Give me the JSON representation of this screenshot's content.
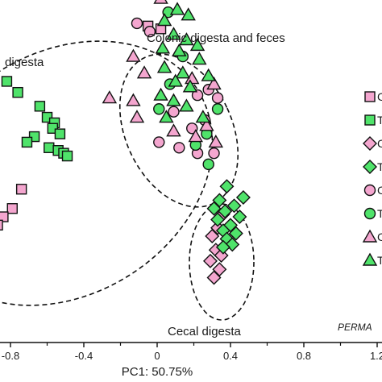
{
  "chart_data": {
    "type": "scatter",
    "xlabel": "PC1: 50.75%",
    "xlim": [
      -0.95,
      1.2
    ],
    "ylim": [
      -0.6,
      0.6
    ],
    "x_ticks": [
      "-0.8",
      "-0.4",
      "0",
      "0.4",
      "0.8",
      "1.2"
    ],
    "x_tick_values": [
      -0.8,
      -0.4,
      0,
      0.4,
      0.8,
      1.2
    ],
    "x_minor_ticks": [
      -0.6,
      -0.2,
      0.2,
      0.6,
      1.0
    ],
    "colors": {
      "pink": "#f4a6cf",
      "green": "#4fe36a",
      "stroke": "#111111"
    },
    "annotations": {
      "colonic": "Colonic digesta and feces",
      "ileal": "digesta",
      "cecal": "Cecal digesta",
      "permanova": "PERMA"
    },
    "legend_labels": [
      "C",
      "T",
      "C",
      "T",
      "C",
      "T",
      "C",
      "T"
    ],
    "legend_placement": "right",
    "groups": [
      {
        "shape": "square",
        "color": "pink",
        "points": [
          [
            -0.05,
            0.48
          ],
          [
            0.02,
            0.47
          ],
          [
            -0.74,
            -0.11
          ],
          [
            -0.79,
            -0.18
          ],
          [
            -0.84,
            -0.21
          ],
          [
            -0.87,
            -0.24
          ],
          [
            -0.89,
            -0.29
          ],
          [
            -0.92,
            -0.32
          ],
          [
            -0.93,
            -0.37
          ]
        ]
      },
      {
        "shape": "square",
        "color": "green",
        "points": [
          [
            -0.82,
            0.28
          ],
          [
            -0.76,
            0.24
          ],
          [
            -0.64,
            0.19
          ],
          [
            -0.6,
            0.15
          ],
          [
            -0.56,
            0.13
          ],
          [
            -0.57,
            0.11
          ],
          [
            -0.53,
            0.09
          ],
          [
            -0.67,
            0.08
          ],
          [
            -0.71,
            0.06
          ],
          [
            -0.59,
            0.04
          ],
          [
            -0.54,
            0.03
          ],
          [
            -0.51,
            0.02
          ],
          [
            -0.49,
            0.01
          ]
        ]
      },
      {
        "shape": "diamond",
        "color": "pink",
        "points": [
          [
            0.36,
            -0.2
          ],
          [
            0.33,
            -0.25
          ],
          [
            0.3,
            -0.28
          ],
          [
            0.39,
            -0.3
          ],
          [
            0.32,
            -0.33
          ],
          [
            0.35,
            -0.35
          ],
          [
            0.29,
            -0.37
          ],
          [
            0.34,
            -0.4
          ],
          [
            0.31,
            -0.43
          ]
        ]
      },
      {
        "shape": "diamond",
        "color": "green",
        "points": [
          [
            0.38,
            -0.1
          ],
          [
            0.47,
            -0.14
          ],
          [
            0.34,
            -0.15
          ],
          [
            0.42,
            -0.17
          ],
          [
            0.31,
            -0.18
          ],
          [
            0.37,
            -0.19
          ],
          [
            0.45,
            -0.21
          ],
          [
            0.33,
            -0.22
          ],
          [
            0.4,
            -0.24
          ],
          [
            0.36,
            -0.26
          ],
          [
            0.43,
            -0.27
          ],
          [
            0.38,
            -0.29
          ],
          [
            0.41,
            -0.31
          ],
          [
            0.36,
            -0.32
          ]
        ]
      },
      {
        "shape": "circle",
        "color": "pink",
        "points": [
          [
            -0.11,
            0.49
          ],
          [
            -0.04,
            0.46
          ],
          [
            0.28,
            0.25
          ],
          [
            0.22,
            0.23
          ],
          [
            0.33,
            0.22
          ],
          [
            0.09,
            0.17
          ],
          [
            0.26,
            0.14
          ],
          [
            0.19,
            0.11
          ],
          [
            0.01,
            0.06
          ],
          [
            0.12,
            0.04
          ],
          [
            0.22,
            0.02
          ],
          [
            0.31,
            0.02
          ]
        ]
      },
      {
        "shape": "circle",
        "color": "green",
        "points": [
          [
            0.06,
            0.53
          ],
          [
            0.14,
            0.37
          ],
          [
            0.07,
            0.27
          ],
          [
            0.01,
            0.18
          ],
          [
            0.33,
            0.18
          ],
          [
            0.27,
            0.09
          ],
          [
            0.21,
            0.05
          ],
          [
            0.28,
            -0.02
          ]
        ]
      },
      {
        "shape": "triangle",
        "color": "pink",
        "points": [
          [
            0.02,
            0.58
          ],
          [
            -0.13,
            0.37
          ],
          [
            -0.07,
            0.31
          ],
          [
            0.19,
            0.29
          ],
          [
            0.31,
            0.27
          ],
          [
            -0.13,
            0.21
          ],
          [
            -0.26,
            0.22
          ],
          [
            -0.11,
            0.15
          ],
          [
            0.27,
            0.12
          ],
          [
            0.09,
            0.1
          ],
          [
            0.21,
            0.08
          ],
          [
            0.32,
            0.06
          ]
        ]
      },
      {
        "shape": "triangle",
        "color": "green",
        "points": [
          [
            0.11,
            0.54
          ],
          [
            0.17,
            0.52
          ],
          [
            0.04,
            0.5
          ],
          [
            0.09,
            0.45
          ],
          [
            0.16,
            0.43
          ],
          [
            0.22,
            0.41
          ],
          [
            0.03,
            0.4
          ],
          [
            0.12,
            0.39
          ],
          [
            0.23,
            0.36
          ],
          [
            0.04,
            0.33
          ],
          [
            0.14,
            0.31
          ],
          [
            0.28,
            0.3
          ],
          [
            0.1,
            0.28
          ],
          [
            0.18,
            0.26
          ],
          [
            0.02,
            0.23
          ],
          [
            0.09,
            0.21
          ],
          [
            0.16,
            0.19
          ],
          [
            0.05,
            0.15
          ],
          [
            0.25,
            0.15
          ]
        ]
      }
    ]
  }
}
